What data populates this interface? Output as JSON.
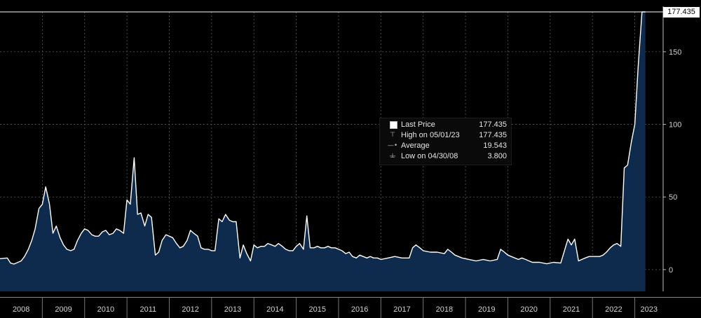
{
  "chart_data": {
    "type": "area",
    "title": "",
    "xlabel": "",
    "ylabel": "",
    "x_ticks": [
      "2008",
      "2009",
      "2010",
      "2011",
      "2012",
      "2013",
      "2014",
      "2015",
      "2016",
      "2017",
      "2018",
      "2019",
      "2020",
      "2021",
      "2022",
      "2023"
    ],
    "y_ticks": [
      0,
      50,
      100,
      150
    ],
    "ylim": [
      -15,
      177.435
    ],
    "xlim": [
      2008.0,
      2023.67
    ],
    "grid": true,
    "last_value_label": "177.435",
    "series": [
      {
        "color": "#ffffff",
        "fill": "#0e2a4d",
        "points": [
          [
            2008.0,
            7.5
          ],
          [
            2008.17,
            8.0
          ],
          [
            2008.25,
            4.5
          ],
          [
            2008.33,
            3.8
          ],
          [
            2008.5,
            6.0
          ],
          [
            2008.58,
            9.0
          ],
          [
            2008.67,
            14.0
          ],
          [
            2008.75,
            20.0
          ],
          [
            2008.83,
            28.0
          ],
          [
            2008.92,
            42.0
          ],
          [
            2009.0,
            45.0
          ],
          [
            2009.08,
            57.0
          ],
          [
            2009.17,
            45.0
          ],
          [
            2009.25,
            25.0
          ],
          [
            2009.33,
            30.0
          ],
          [
            2009.42,
            22.0
          ],
          [
            2009.5,
            17.0
          ],
          [
            2009.58,
            14.0
          ],
          [
            2009.67,
            13.0
          ],
          [
            2009.75,
            14.0
          ],
          [
            2009.83,
            20.0
          ],
          [
            2009.92,
            25.0
          ],
          [
            2010.0,
            28.0
          ],
          [
            2010.08,
            27.0
          ],
          [
            2010.17,
            24.0
          ],
          [
            2010.25,
            23.0
          ],
          [
            2010.33,
            23.0
          ],
          [
            2010.42,
            26.0
          ],
          [
            2010.5,
            27.0
          ],
          [
            2010.58,
            24.0
          ],
          [
            2010.67,
            25.0
          ],
          [
            2010.75,
            28.0
          ],
          [
            2010.83,
            27.0
          ],
          [
            2010.92,
            25.0
          ],
          [
            2011.0,
            48.0
          ],
          [
            2011.08,
            45.0
          ],
          [
            2011.17,
            77.0
          ],
          [
            2011.25,
            38.0
          ],
          [
            2011.33,
            39.0
          ],
          [
            2011.42,
            30.0
          ],
          [
            2011.5,
            38.0
          ],
          [
            2011.58,
            36.0
          ],
          [
            2011.67,
            10.0
          ],
          [
            2011.75,
            12.0
          ],
          [
            2011.83,
            20.0
          ],
          [
            2011.92,
            24.0
          ],
          [
            2012.0,
            23.0
          ],
          [
            2012.08,
            22.0
          ],
          [
            2012.17,
            18.0
          ],
          [
            2012.25,
            15.0
          ],
          [
            2012.33,
            16.0
          ],
          [
            2012.42,
            20.0
          ],
          [
            2012.5,
            27.0
          ],
          [
            2012.58,
            25.0
          ],
          [
            2012.67,
            23.0
          ],
          [
            2012.75,
            15.0
          ],
          [
            2012.83,
            14.0
          ],
          [
            2012.92,
            14.0
          ],
          [
            2013.0,
            13.0
          ],
          [
            2013.08,
            13.0
          ],
          [
            2013.17,
            35.0
          ],
          [
            2013.25,
            33.0
          ],
          [
            2013.33,
            38.0
          ],
          [
            2013.42,
            34.0
          ],
          [
            2013.5,
            33.0
          ],
          [
            2013.58,
            33.0
          ],
          [
            2013.67,
            8.0
          ],
          [
            2013.75,
            17.0
          ],
          [
            2013.83,
            11.0
          ],
          [
            2013.92,
            6.0
          ],
          [
            2014.0,
            17.0
          ],
          [
            2014.08,
            15.0
          ],
          [
            2014.17,
            16.0
          ],
          [
            2014.25,
            16.0
          ],
          [
            2014.33,
            18.0
          ],
          [
            2014.42,
            17.0
          ],
          [
            2014.5,
            16.0
          ],
          [
            2014.58,
            18.0
          ],
          [
            2014.67,
            16.0
          ],
          [
            2014.75,
            14.0
          ],
          [
            2014.83,
            13.0
          ],
          [
            2014.92,
            13.0
          ],
          [
            2015.0,
            16.0
          ],
          [
            2015.08,
            18.0
          ],
          [
            2015.17,
            14.0
          ],
          [
            2015.25,
            37.0
          ],
          [
            2015.33,
            15.0
          ],
          [
            2015.42,
            15.0
          ],
          [
            2015.5,
            16.0
          ],
          [
            2015.58,
            15.0
          ],
          [
            2015.67,
            15.0
          ],
          [
            2015.75,
            16.0
          ],
          [
            2015.83,
            15.0
          ],
          [
            2015.92,
            15.0
          ],
          [
            2016.0,
            14.0
          ],
          [
            2016.08,
            13.0
          ],
          [
            2016.17,
            11.0
          ],
          [
            2016.25,
            12.0
          ],
          [
            2016.33,
            9.0
          ],
          [
            2016.42,
            8.0
          ],
          [
            2016.5,
            10.0
          ],
          [
            2016.58,
            9.0
          ],
          [
            2016.67,
            8.0
          ],
          [
            2016.75,
            9.0
          ],
          [
            2016.83,
            8.0
          ],
          [
            2016.92,
            8.0
          ],
          [
            2017.0,
            7.0
          ],
          [
            2017.17,
            8.0
          ],
          [
            2017.33,
            9.0
          ],
          [
            2017.5,
            8.0
          ],
          [
            2017.67,
            8.0
          ],
          [
            2017.75,
            15.0
          ],
          [
            2017.83,
            17.0
          ],
          [
            2017.92,
            15.0
          ],
          [
            2018.0,
            13.0
          ],
          [
            2018.17,
            12.0
          ],
          [
            2018.33,
            12.0
          ],
          [
            2018.5,
            11.0
          ],
          [
            2018.58,
            14.0
          ],
          [
            2018.67,
            12.0
          ],
          [
            2018.75,
            10.0
          ],
          [
            2018.92,
            8.0
          ],
          [
            2019.08,
            7.0
          ],
          [
            2019.25,
            6.0
          ],
          [
            2019.42,
            7.0
          ],
          [
            2019.58,
            6.0
          ],
          [
            2019.75,
            7.0
          ],
          [
            2019.83,
            14.0
          ],
          [
            2019.92,
            12.0
          ],
          [
            2020.0,
            10.0
          ],
          [
            2020.08,
            9.0
          ],
          [
            2020.25,
            7.0
          ],
          [
            2020.33,
            8.0
          ],
          [
            2020.42,
            7.0
          ],
          [
            2020.5,
            6.0
          ],
          [
            2020.58,
            5.0
          ],
          [
            2020.75,
            5.0
          ],
          [
            2020.92,
            4.0
          ],
          [
            2021.08,
            5.0
          ],
          [
            2021.25,
            4.5
          ],
          [
            2021.42,
            21.0
          ],
          [
            2021.5,
            17.0
          ],
          [
            2021.58,
            21.0
          ],
          [
            2021.67,
            6.0
          ],
          [
            2021.75,
            7.0
          ],
          [
            2021.83,
            8.0
          ],
          [
            2021.92,
            9.0
          ],
          [
            2022.08,
            9.0
          ],
          [
            2022.17,
            9.0
          ],
          [
            2022.25,
            10.0
          ],
          [
            2022.33,
            12.0
          ],
          [
            2022.42,
            15.0
          ],
          [
            2022.5,
            17.0
          ],
          [
            2022.58,
            18.0
          ],
          [
            2022.67,
            16.0
          ],
          [
            2022.75,
            70.0
          ],
          [
            2022.83,
            72.0
          ],
          [
            2022.92,
            88.0
          ],
          [
            2023.0,
            100.0
          ],
          [
            2023.08,
            140.0
          ],
          [
            2023.17,
            177.435
          ],
          [
            2023.25,
            177.435
          ]
        ]
      }
    ],
    "legend": [
      {
        "symbol": "box",
        "label": "Last Price",
        "value": "177.435"
      },
      {
        "symbol": "high",
        "label": "High on 05/01/23",
        "value": "177.435"
      },
      {
        "symbol": "avg",
        "label": "Average",
        "value": "19.543"
      },
      {
        "symbol": "low",
        "label": "Low on 04/30/08",
        "value": "3.800"
      }
    ]
  }
}
